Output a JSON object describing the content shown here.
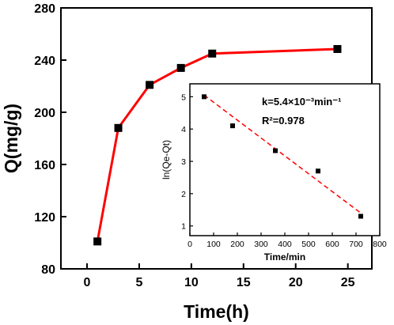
{
  "chart_data": [
    {
      "type": "line",
      "title": "",
      "xlabel": "Time(h)",
      "ylabel": "Q(mg/g)",
      "xlim": [
        -2.5,
        27.3
      ],
      "ylim": [
        80,
        280
      ],
      "xticks": [
        0,
        5,
        10,
        15,
        20,
        25
      ],
      "yticks": [
        80,
        120,
        160,
        200,
        240,
        280
      ],
      "grid": false,
      "series": [
        {
          "x": [
            1,
            3,
            6,
            9,
            12,
            24
          ],
          "y": [
            101,
            188,
            221,
            234,
            245,
            248.5
          ],
          "color": "#ff0000",
          "marker": "square",
          "marker_color": "#000000"
        }
      ]
    },
    {
      "type": "scatter",
      "title": "",
      "xlabel": "Time/min",
      "ylabel": "ln(Qe-Qt)",
      "xlim": [
        0,
        800
      ],
      "ylim": [
        0.7,
        5.4
      ],
      "xticks": [
        0,
        100,
        200,
        300,
        400,
        500,
        600,
        700,
        800
      ],
      "yticks": [
        1,
        2,
        3,
        4,
        5
      ],
      "grid": false,
      "series": [
        {
          "x": [
            60,
            180,
            360,
            540,
            720
          ],
          "y": [
            5.0,
            4.1,
            3.33,
            2.7,
            1.3
          ],
          "marker": "square",
          "color": "#000000"
        }
      ],
      "fit_line": {
        "x": [
          60,
          720
        ],
        "y": [
          5.05,
          1.4
        ],
        "color": "#ff0000",
        "style": "dashed"
      },
      "annotations": [
        "k=5.4×10⁻³min⁻¹",
        "R²=0.978"
      ]
    }
  ]
}
